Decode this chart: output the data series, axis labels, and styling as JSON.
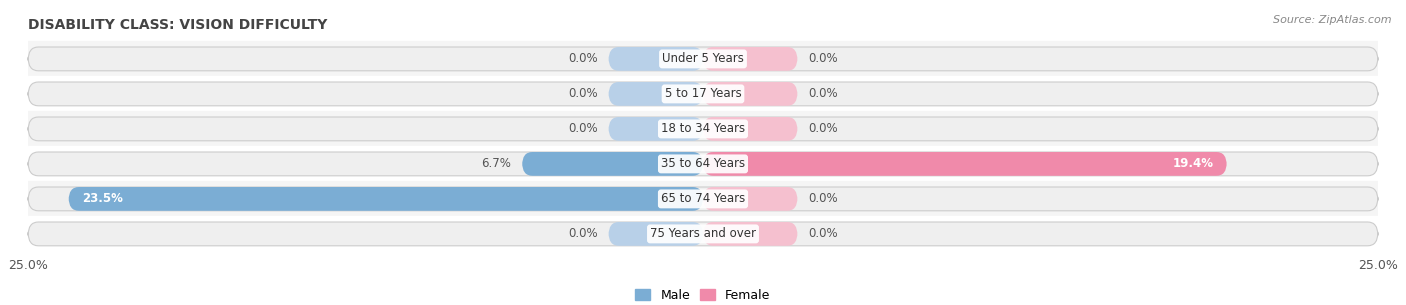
{
  "title": "DISABILITY CLASS: VISION DIFFICULTY",
  "source": "Source: ZipAtlas.com",
  "categories": [
    "Under 5 Years",
    "5 to 17 Years",
    "18 to 34 Years",
    "35 to 64 Years",
    "65 to 74 Years",
    "75 Years and over"
  ],
  "male_values": [
    0.0,
    0.0,
    0.0,
    6.7,
    23.5,
    0.0
  ],
  "female_values": [
    0.0,
    0.0,
    0.0,
    19.4,
    0.0,
    0.0
  ],
  "male_color": "#7badd4",
  "female_color": "#f08aaa",
  "male_color_light": "#b8d0e8",
  "female_color_light": "#f5c0cf",
  "bar_bg_color": "#efefef",
  "bar_bg_color2": "#e8e8e8",
  "row_bg_even": "#f5f5f5",
  "row_bg_odd": "#ffffff",
  "bar_outline_color": "#cccccc",
  "xlim": 25.0,
  "min_bar_width": 3.5,
  "title_fontsize": 10,
  "source_fontsize": 8,
  "label_fontsize": 8.5,
  "tick_fontsize": 9,
  "legend_fontsize": 9,
  "cat_fontsize": 8.5
}
